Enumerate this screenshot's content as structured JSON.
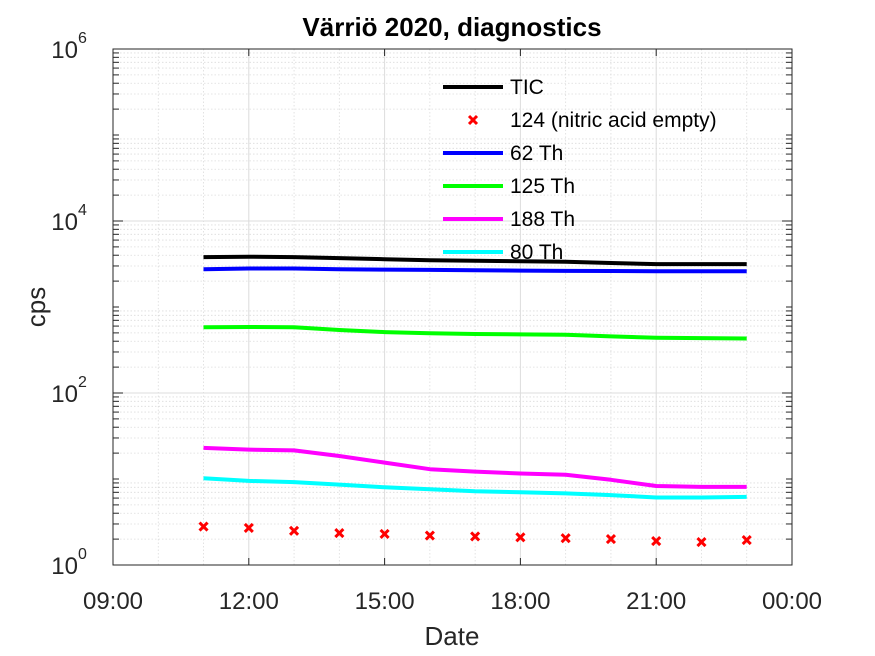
{
  "chart_data": {
    "type": "line",
    "title": "Värriö 2020, diagnostics",
    "xlabel": "Date",
    "ylabel": "cps",
    "yscale": "log",
    "ylim": [
      1,
      1000000
    ],
    "xlim": [
      "09:00",
      "00:00"
    ],
    "x_ticks": [
      "09:00",
      "12:00",
      "15:00",
      "18:00",
      "21:00",
      "00:00"
    ],
    "y_ticks": [
      {
        "base": "10",
        "exp": "0"
      },
      {
        "base": "10",
        "exp": "2"
      },
      {
        "base": "10",
        "exp": "4"
      },
      {
        "base": "10",
        "exp": "6"
      }
    ],
    "grid": true,
    "minor_grid": true,
    "legend_position": "top-right",
    "x": [
      "11:00",
      "12:00",
      "13:00",
      "14:00",
      "15:00",
      "16:00",
      "17:00",
      "18:00",
      "19:00",
      "20:00",
      "21:00",
      "22:00",
      "23:00"
    ],
    "series": [
      {
        "name": "TIC",
        "style": "line",
        "color": "#000000",
        "values": [
          3800,
          3850,
          3800,
          3700,
          3600,
          3500,
          3450,
          3400,
          3350,
          3250,
          3150,
          3150,
          3150
        ]
      },
      {
        "name": "124 (nitric acid empty)",
        "style": "marker-x",
        "color": "#ff0000",
        "values": [
          2.8,
          2.7,
          2.5,
          2.35,
          2.3,
          2.2,
          2.15,
          2.1,
          2.05,
          2.0,
          1.9,
          1.85,
          1.95
        ]
      },
      {
        "name": "62 Th",
        "style": "line",
        "color": "#0000ff",
        "values": [
          2750,
          2800,
          2800,
          2750,
          2720,
          2700,
          2680,
          2650,
          2630,
          2620,
          2600,
          2600,
          2600
        ]
      },
      {
        "name": "125 Th",
        "style": "line",
        "color": "#00ff00",
        "values": [
          580,
          585,
          580,
          540,
          510,
          495,
          485,
          480,
          475,
          455,
          440,
          435,
          430
        ]
      },
      {
        "name": "188 Th",
        "style": "line",
        "color": "#ff00ff",
        "values": [
          23,
          22,
          21.5,
          18.5,
          15.5,
          13,
          12.2,
          11.6,
          11.2,
          9.8,
          8.3,
          8.1,
          8.1
        ]
      },
      {
        "name": "80 Th",
        "style": "line",
        "color": "#00ffff",
        "values": [
          10.2,
          9.5,
          9.2,
          8.6,
          8.0,
          7.6,
          7.2,
          7.0,
          6.8,
          6.5,
          6.1,
          6.1,
          6.2
        ]
      }
    ]
  }
}
